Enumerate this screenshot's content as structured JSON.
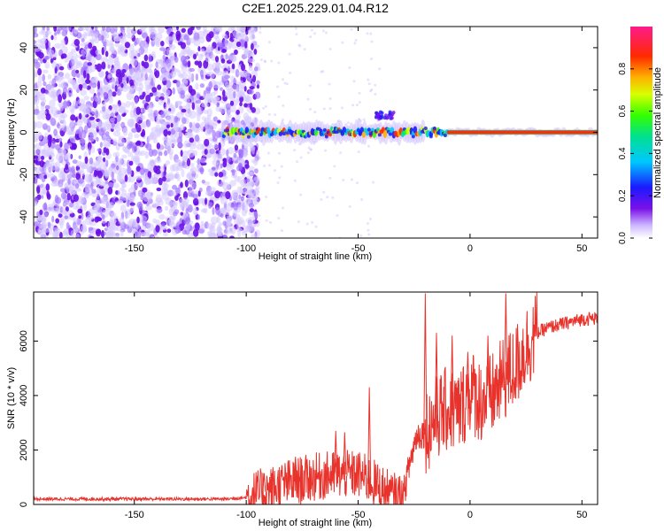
{
  "figure_title": "C2E1.2025.229.01.04.R12",
  "colors": {
    "snr_line": "#e8332c",
    "spec_low": "#d9ccff",
    "spec_mid": "#7a10e8",
    "frame": "#000000"
  },
  "chart_data": [
    {
      "type": "heatmap",
      "title": "",
      "xlabel": "Height of straight line (km)",
      "ylabel": "Frequency (Hz)",
      "xlim": [
        -195,
        57
      ],
      "ylim": [
        -50,
        50
      ],
      "xticks": [
        "-150",
        "-100",
        "-50",
        "0",
        "50"
      ],
      "xtick_values": [
        -150,
        -100,
        -50,
        0,
        50
      ],
      "yticks": [
        "-40",
        "-20",
        "0",
        "20",
        "40"
      ],
      "ytick_values": [
        -40,
        -20,
        0,
        20,
        40
      ],
      "colorbar": {
        "label": "Normalized spectral amplitude",
        "range": [
          0,
          1
        ],
        "ticks": [
          "0.0",
          "0.2",
          "0.4",
          "0.6",
          "0.8"
        ],
        "tick_values": [
          0.0,
          0.2,
          0.4,
          0.6,
          0.8
        ],
        "colormap": "rainbow (lavender-violet-blue-cyan-green-yellow-orange-red-magenta)"
      },
      "description_values": {
        "noise_region_x": [
          -195,
          -97
        ],
        "signal_line_freq_hz": 0,
        "signal_start_x": -110
      }
    },
    {
      "type": "line",
      "title": "",
      "xlabel": "Height of straight line (km)",
      "ylabel": "SNR (10 * v/v)",
      "xlim": [
        -195,
        57
      ],
      "ylim": [
        0,
        7800
      ],
      "xticks": [
        "-150",
        "-100",
        "-50",
        "0",
        "50"
      ],
      "xtick_values": [
        -150,
        -100,
        -50,
        0,
        50
      ],
      "yticks": [
        "0",
        "2000",
        "4000",
        "6000"
      ],
      "ytick_values": [
        0,
        2000,
        4000,
        6000
      ],
      "grid": false,
      "series": [
        {
          "x": [
            -195,
            -170,
            -140,
            -110,
            -100,
            -95,
            -90,
            -85,
            -80,
            -75,
            -70,
            -65,
            -60,
            -55,
            -50,
            -45,
            -40,
            -35,
            -30,
            -27,
            -24,
            -20,
            -18,
            -15,
            -10,
            -5,
            0,
            5,
            10,
            15,
            20,
            25,
            30,
            35,
            40,
            45,
            50,
            57
          ],
          "y": [
            200,
            200,
            200,
            200,
            250,
            400,
            500,
            700,
            800,
            900,
            1000,
            1050,
            1100,
            1100,
            1100,
            900,
            600,
            300,
            250,
            1500,
            2500,
            2700,
            2900,
            3200,
            3500,
            3400,
            4200,
            3800,
            4000,
            4600,
            5000,
            5800,
            6300,
            6500,
            6600,
            6700,
            6800,
            6850
          ],
          "spikes": [
            {
              "x": -92,
              "y": 1150
            },
            {
              "x": -78,
              "y": 1750
            },
            {
              "x": -60,
              "y": 2700
            },
            {
              "x": -56,
              "y": 2650
            },
            {
              "x": -45,
              "y": 4300
            },
            {
              "x": -20,
              "y": 7750
            },
            {
              "x": -15,
              "y": 6300
            },
            {
              "x": -8,
              "y": 6200
            },
            {
              "x": -1,
              "y": 5600
            },
            {
              "x": 8,
              "y": 6200
            },
            {
              "x": 16,
              "y": 7750
            }
          ]
        }
      ]
    }
  ]
}
